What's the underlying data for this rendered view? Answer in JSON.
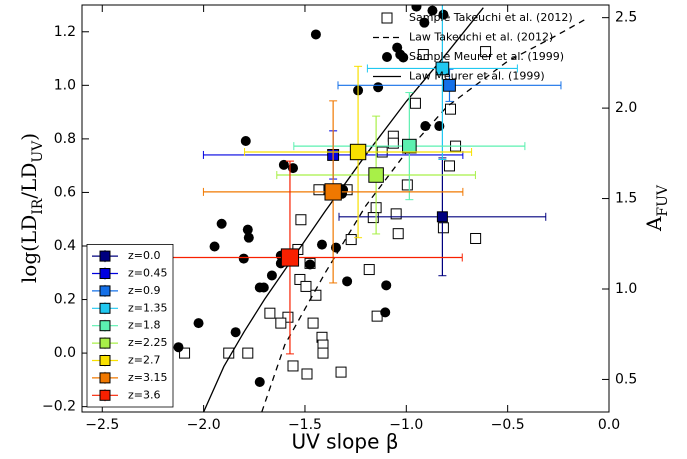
{
  "chart_data": {
    "type": "scatter",
    "xlabel": "UV slope β",
    "ylabel": [
      {
        "text": "log(LD"
      },
      {
        "text": "IR",
        "sub": true
      },
      {
        "text": "/LD"
      },
      {
        "text": "UV",
        "sub": true
      },
      {
        "text": ")"
      }
    ],
    "y2label": [
      {
        "text": "A"
      },
      {
        "text": "FUV",
        "sub": true
      }
    ],
    "xlim": [
      -2.6,
      0.0
    ],
    "ylim": [
      -0.22,
      1.3
    ],
    "y2lim": [
      0.32,
      2.57
    ],
    "xticks": [
      {
        "value": -2.5,
        "label": "−2.5"
      },
      {
        "value": -2.0,
        "label": "−2.0"
      },
      {
        "value": -1.5,
        "label": "−1.5"
      },
      {
        "value": -1.0,
        "label": "−1.0"
      },
      {
        "value": -0.5,
        "label": "−0.5"
      },
      {
        "value": 0.0,
        "label": "0.0"
      }
    ],
    "yticks": [
      {
        "value": -0.2,
        "label": "−0.2"
      },
      {
        "value": 0.0,
        "label": "0.0"
      },
      0.2,
      0.4,
      0.6,
      0.8,
      {
        "value": 1.0,
        "label": "1.0"
      },
      1.2
    ],
    "y2ticks": [
      0.5,
      {
        "value": 1.0,
        "label": "1.0"
      },
      1.5,
      {
        "value": 2.0,
        "label": "2.0"
      },
      2.5
    ],
    "legend_loc": "upper right",
    "legend2_loc": "lower left",
    "series": [
      {
        "name": "Sample Takeuchi et al. (2012)",
        "kind": "open-square",
        "color": "#000000",
        "x": [
          -0.916,
          -0.609,
          -0.955,
          -1.064,
          -1.064,
          -0.757,
          -0.787,
          -1.119,
          -0.995,
          -1.431,
          -1.292,
          -1.52,
          -1.149,
          -1.163,
          -1.05,
          -1.272,
          -1.04,
          -0.817,
          -0.658,
          -1.535,
          -1.475,
          -1.183,
          -1.525,
          -1.495,
          -1.446,
          -1.673,
          -1.584,
          -1.144,
          -1.619,
          -1.46,
          -1.416,
          -1.411,
          -2.094,
          -1.876,
          -1.782,
          -1.411,
          -1.559,
          -1.49,
          -1.322,
          -0.782
        ],
        "values": [
          1.115,
          1.126,
          0.933,
          0.81,
          0.784,
          0.773,
          0.699,
          0.751,
          0.628,
          0.61,
          0.61,
          0.498,
          0.543,
          0.506,
          0.52,
          0.424,
          0.446,
          0.468,
          0.428,
          0.387,
          0.335,
          0.312,
          0.275,
          0.249,
          0.216,
          0.149,
          0.134,
          0.138,
          0.112,
          0.112,
          0.059,
          0.03,
          0.0,
          0.0,
          0.0,
          0.0,
          -0.048,
          -0.078,
          -0.071,
          0.911
        ]
      },
      {
        "name": "Law Takeuchi et al. (2012)",
        "kind": "dashed-line",
        "color": "#000000",
        "x": [
          -1.713,
          -1.6,
          -1.4,
          -1.2,
          -1.0,
          -0.8,
          -0.5,
          -0.25,
          -0.12
        ],
        "values": [
          -0.22,
          0.03,
          0.3,
          0.55,
          0.75,
          0.92,
          1.09,
          1.19,
          1.245
        ]
      },
      {
        "name": "Sample Meurer et al. (1999)",
        "kind": "filled-circle",
        "color": "#000000",
        "x": [
          -0.871,
          -0.817,
          -0.911,
          -0.95,
          -1.446,
          -1.045,
          -1.03,
          -1.015,
          -1.139,
          -1.238,
          -0.906,
          -0.837,
          -1.792,
          -1.604,
          -1.559,
          -1.312,
          -1.317,
          -1.347,
          -1.416,
          -1.911,
          -1.782,
          -1.777,
          -1.946,
          -1.802,
          -1.619,
          -1.619,
          -1.663,
          -1.723,
          -1.703,
          -1.475,
          -1.292,
          -1.099,
          -1.104,
          -2.025,
          -1.842,
          -2.124,
          -1.723
        ],
        "values": [
          1.279,
          1.264,
          1.234,
          1.294,
          1.19,
          1.141,
          1.115,
          1.104,
          0.993,
          0.981,
          0.848,
          0.848,
          0.792,
          0.703,
          0.691,
          0.61,
          0.595,
          0.394,
          0.405,
          0.483,
          0.461,
          0.431,
          0.398,
          0.353,
          0.364,
          0.335,
          0.29,
          0.245,
          0.245,
          0.331,
          0.268,
          0.253,
          0.152,
          0.112,
          0.078,
          0.022,
          -0.108
        ]
      },
      {
        "name": "Law Meurer et al. (1999)",
        "kind": "solid-line",
        "color": "#000000",
        "x": [
          -2.0,
          -1.9,
          -1.8,
          -1.7,
          -1.6,
          -1.4,
          -1.2,
          -1.0,
          -0.8,
          -0.62
        ],
        "values": [
          -0.22,
          -0.05,
          0.08,
          0.2,
          0.31,
          0.53,
          0.74,
          0.94,
          1.12,
          1.29
        ]
      },
      {
        "name": "z=0.0",
        "kind": "errorbar-square",
        "color": "#00007f",
        "x": [
          -0.822
        ],
        "values": [
          0.509
        ],
        "xerr": [
          0.51
        ],
        "yerr": [
          0.22
        ]
      },
      {
        "name": "z=0.45",
        "kind": "errorbar-square",
        "color": "#0000e0",
        "x": [
          -1.361
        ],
        "values": [
          0.74
        ],
        "xerr": [
          0.64
        ],
        "yerr": [
          0.09
        ]
      },
      {
        "name": "z=0.9",
        "kind": "errorbar-square",
        "color": "#1470e8",
        "x": [
          -0.787
        ],
        "values": [
          1.0
        ],
        "xerr": [
          0.55
        ],
        "yerr": [
          0.06
        ]
      },
      {
        "name": "z=1.35",
        "kind": "errorbar-square",
        "color": "#20c8f0",
        "x": [
          -0.822
        ],
        "values": [
          1.063
        ],
        "xerr": [
          0.37
        ],
        "yerr": [
          0.34
        ]
      },
      {
        "name": "z=1.8",
        "kind": "errorbar-square",
        "color": "#5cf0b0",
        "x": [
          -0.985
        ],
        "values": [
          0.773
        ],
        "xerr": [
          0.57
        ],
        "yerr": [
          0.2
        ]
      },
      {
        "name": "z=2.25",
        "kind": "errorbar-square",
        "color": "#a8f048",
        "x": [
          -1.149
        ],
        "values": [
          0.665
        ],
        "xerr": [
          0.49
        ],
        "yerr": [
          0.22
        ]
      },
      {
        "name": "z=2.7",
        "kind": "errorbar-square",
        "color": "#f8e000",
        "x": [
          -1.238
        ],
        "values": [
          0.751
        ],
        "xerr": [
          0.56
        ],
        "yerr": [
          0.32
        ]
      },
      {
        "name": "z=3.15",
        "kind": "errorbar-square",
        "color": "#f07800",
        "x": [
          -1.361
        ],
        "values": [
          0.602
        ],
        "xerr": [
          0.64
        ],
        "yerr": [
          0.34
        ]
      },
      {
        "name": "z=3.6",
        "kind": "errorbar-square",
        "color": "#f82000",
        "x": [
          -1.574
        ],
        "values": [
          0.357
        ],
        "xerr": [
          0.85
        ],
        "yerr": [
          0.36
        ]
      }
    ]
  }
}
